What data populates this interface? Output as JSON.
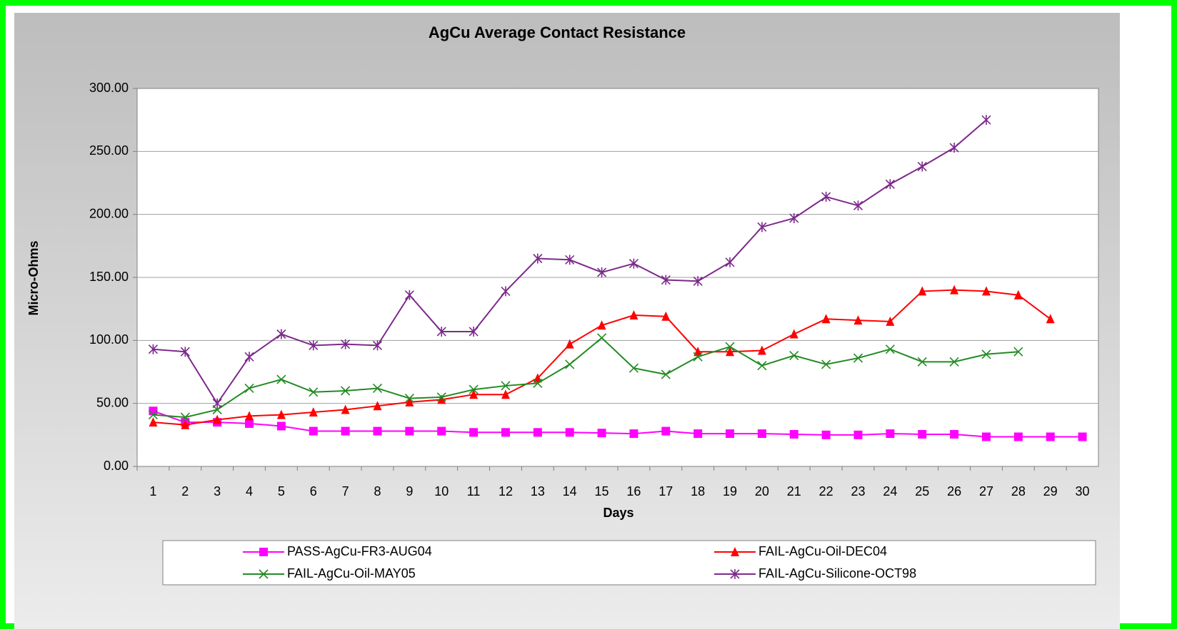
{
  "chart_data": {
    "type": "line",
    "title": "AgCu Average Contact Resistance",
    "x_label": "Days",
    "y_label": "Micro-Ohms",
    "categories": [
      "1",
      "2",
      "3",
      "4",
      "5",
      "6",
      "7",
      "8",
      "9",
      "10",
      "11",
      "12",
      "13",
      "14",
      "15",
      "16",
      "17",
      "18",
      "19",
      "20",
      "21",
      "22",
      "23",
      "24",
      "25",
      "26",
      "27",
      "28",
      "29",
      "30"
    ],
    "ylim": [
      0,
      300
    ],
    "yticks": [
      {
        "value": 0,
        "label": "0.00"
      },
      {
        "value": 50,
        "label": "50.00"
      },
      {
        "value": 100,
        "label": "100.00"
      },
      {
        "value": 150,
        "label": "150.00"
      },
      {
        "value": 200,
        "label": "200.00"
      },
      {
        "value": 250,
        "label": "250.00"
      },
      {
        "value": 300,
        "label": "300.00"
      }
    ],
    "grid": true,
    "legend": "bottom",
    "series": [
      {
        "name": "PASS-AgCu-FR3-AUG04",
        "color": "#ff00ff",
        "marker": "square",
        "values": [
          44,
          35,
          35,
          34,
          32,
          28,
          28,
          28,
          28,
          28,
          27,
          27,
          27,
          27,
          26.5,
          26,
          28,
          26,
          26,
          26,
          25.5,
          25,
          25,
          26,
          25.5,
          25.5,
          23.5,
          23.5,
          23.5,
          23.5
        ]
      },
      {
        "name": "FAIL-AgCu-Oil-DEC04",
        "color": "#ff0000",
        "marker": "triangle",
        "values": [
          35,
          33,
          37,
          40,
          41,
          43,
          45,
          48,
          51,
          53,
          57,
          57,
          70,
          97,
          112,
          120,
          119,
          91,
          91,
          92,
          105,
          117,
          116,
          115,
          139,
          140,
          139,
          136,
          117,
          null
        ]
      },
      {
        "name": "FAIL-AgCu-Oil-MAY05",
        "color": "#228b22",
        "marker": "x",
        "values": [
          41,
          39,
          45,
          62,
          69,
          59,
          60,
          62,
          54,
          55,
          61,
          64,
          66,
          81,
          102,
          78,
          73,
          87,
          95,
          80,
          88,
          81,
          86,
          93,
          83,
          83,
          89,
          91,
          null,
          null
        ]
      },
      {
        "name": "FAIL-AgCu-Silicone-OCT98",
        "color": "#7b2a8a",
        "marker": "star",
        "values": [
          93,
          91,
          50,
          87,
          105,
          96,
          97,
          96,
          136,
          107,
          107,
          139,
          165,
          164,
          154,
          161,
          148,
          147,
          162,
          190,
          197,
          214,
          207,
          224,
          238,
          253,
          275,
          null,
          null,
          null
        ]
      }
    ]
  }
}
